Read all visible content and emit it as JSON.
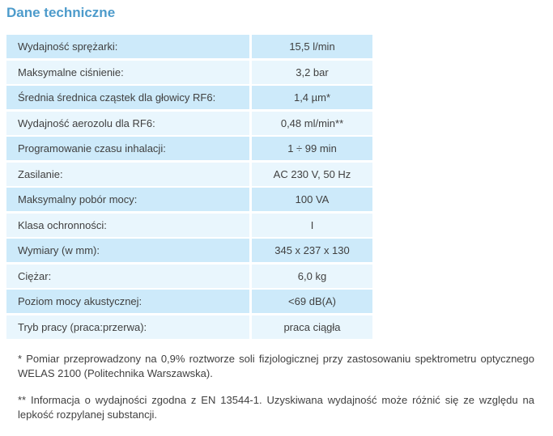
{
  "page": {
    "title": "Dane techniczne",
    "title_color": "#4d9bcb"
  },
  "table": {
    "row_color_odd": "#cdeafa",
    "row_color_even": "#e9f6fd",
    "rows": [
      {
        "label": "Wydajność sprężarki:",
        "value": "15,5 l/min"
      },
      {
        "label": "Maksymalne ciśnienie:",
        "value": "3,2 bar"
      },
      {
        "label": "Średnia średnica cząstek dla głowicy RF6:",
        "value": "1,4 µm*"
      },
      {
        "label": "Wydajność aerozolu dla RF6:",
        "value": "0,48 ml/min**"
      },
      {
        "label": "Programowanie czasu inhalacji:",
        "value": "1 ÷ 99 min"
      },
      {
        "label": "Zasilanie:",
        "value": "AC 230 V, 50 Hz"
      },
      {
        "label": "Maksymalny pobór mocy:",
        "value": "100 VA"
      },
      {
        "label": "Klasa ochronności:",
        "value": "I"
      },
      {
        "label": "Wymiary (w mm):",
        "value": "345 x 237 x 130"
      },
      {
        "label": "Ciężar:",
        "value": "6,0 kg"
      },
      {
        "label": "Poziom mocy akustycznej:",
        "value": "<69 dB(A)"
      },
      {
        "label": "Tryb pracy (praca:przerwa):",
        "value": "praca ciągła"
      }
    ]
  },
  "footnotes": [
    "* Pomiar przeprowadzony na 0,9% roztworze soli fizjologicznej przy zastosowaniu spektrometru optycznego WELAS 2100 (Politechnika Warszawska).",
    "** Informacja o wydajności zgodna z EN 13544-1. Uzyskiwana wydajność może różnić się ze względu na lepkość rozpylanej substancji."
  ]
}
